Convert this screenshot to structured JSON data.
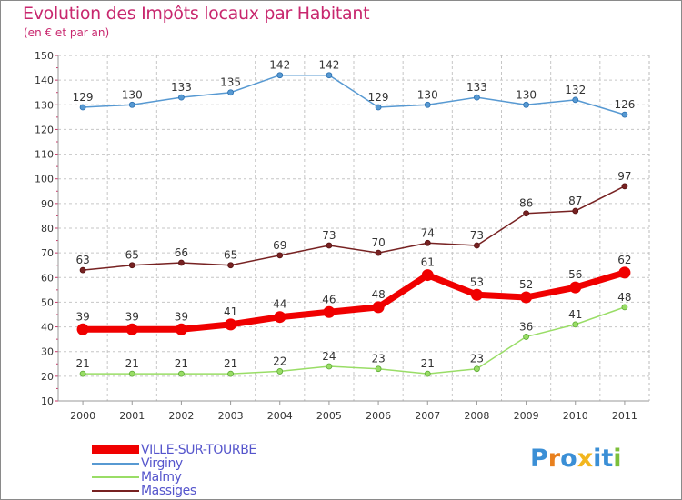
{
  "title": "Evolution des Impôts locaux par Habitant",
  "subtitle": "(en € et par an)",
  "logo": {
    "text": "Proxiti",
    "letter_colors": [
      "#3b8fd6",
      "#e8801e",
      "#3b8fd6",
      "#f2b61e",
      "#3b8fd6",
      "#3b8fd6",
      "#7cbf3a"
    ]
  },
  "chart_data": {
    "type": "line",
    "title": "Evolution des Impôts locaux par Habitant",
    "subtitle": "(en € et par an)",
    "xlabel": "",
    "ylabel": "",
    "categories": [
      "2000",
      "2001",
      "2002",
      "2003",
      "2004",
      "2005",
      "2006",
      "2007",
      "2008",
      "2009",
      "2010",
      "2011"
    ],
    "ylim": [
      10,
      150
    ],
    "yticks": [
      10,
      20,
      30,
      40,
      50,
      60,
      70,
      80,
      90,
      100,
      110,
      120,
      130,
      140,
      150
    ],
    "grid": true,
    "legend_position": "bottom-left",
    "series": [
      {
        "name": "VILLE-SUR-TOURBE",
        "color": "#f00000",
        "values": [
          39,
          39,
          39,
          41,
          44,
          46,
          48,
          61,
          53,
          52,
          56,
          62
        ]
      },
      {
        "name": "Virginy",
        "color": "#5799d2",
        "values": [
          129,
          130,
          133,
          135,
          142,
          142,
          129,
          130,
          133,
          130,
          132,
          126
        ]
      },
      {
        "name": "Malmy",
        "color": "#99dd66",
        "values": [
          21,
          21,
          21,
          21,
          22,
          24,
          23,
          21,
          23,
          36,
          41,
          48
        ]
      },
      {
        "name": "Massiges",
        "color": "#772222",
        "values": [
          63,
          65,
          66,
          65,
          69,
          73,
          70,
          74,
          73,
          86,
          87,
          97
        ]
      }
    ]
  }
}
